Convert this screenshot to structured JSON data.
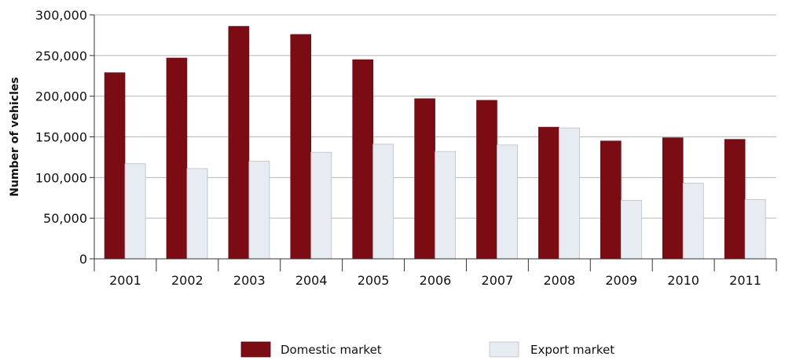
{
  "chart_data": {
    "type": "bar",
    "title": "",
    "xlabel": "",
    "ylabel": "Number of vehicles",
    "ylim": [
      0,
      300000
    ],
    "yticks": [
      0,
      50000,
      100000,
      150000,
      200000,
      250000,
      300000
    ],
    "ytick_labels": [
      "0",
      "50,000",
      "100,000",
      "150,000",
      "200,000",
      "250,000",
      "300,000"
    ],
    "categories": [
      "2001",
      "2002",
      "2003",
      "2004",
      "2005",
      "2006",
      "2007",
      "2008",
      "2009",
      "2010",
      "2011"
    ],
    "series": [
      {
        "name": "Domestic market",
        "color": "#7b0c14",
        "values": [
          229000,
          247000,
          286000,
          276000,
          245000,
          197000,
          195000,
          162000,
          145000,
          149000,
          147000
        ]
      },
      {
        "name": "Export market",
        "color": "#e6ecf1",
        "values": [
          117000,
          111000,
          120000,
          131000,
          141000,
          132000,
          140000,
          161000,
          72000,
          93000,
          73000
        ]
      }
    ],
    "grid": true,
    "legend": "bottom"
  }
}
